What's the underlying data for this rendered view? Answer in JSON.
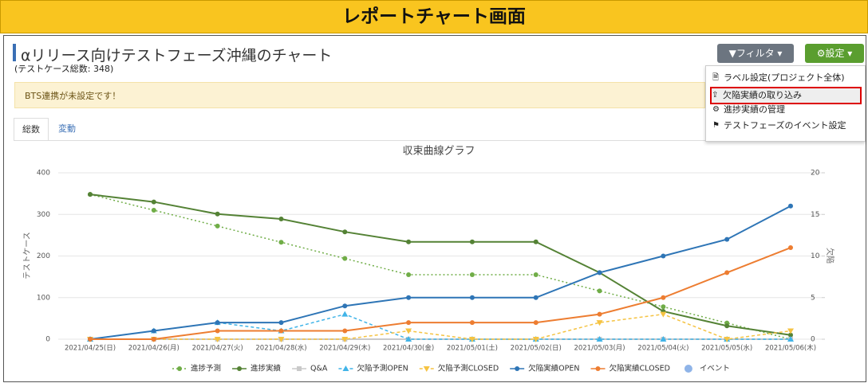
{
  "header": {
    "title": "レポートチャート画面"
  },
  "page": {
    "title": "αリリース向けテストフェーズ沖縄のチャート",
    "subtitle": "(テストケース総数: 348)"
  },
  "buttons": {
    "filter": "フィルタ",
    "settings": "設定"
  },
  "menu": {
    "items": [
      "ラベル設定(プロジェクト全体)",
      "欠陥実績の取り込み",
      "進捗実績の管理",
      "テストフェーズのイベント設定"
    ],
    "highlighted": 1
  },
  "alert": "BTS連携が未設定です！",
  "tabs": [
    "総数",
    "変動"
  ],
  "chart_data": {
    "type": "line",
    "title": "収束曲線グラフ",
    "y_label": "テストケース",
    "y2_label": "欠陥",
    "categories": [
      "2021/04/25(日)",
      "2021/04/26(月)",
      "2021/04/27(火)",
      "2021/04/28(水)",
      "2021/04/29(木)",
      "2021/04/30(金)",
      "2021/05/01(土)",
      "2021/05/02(日)",
      "2021/05/03(月)",
      "2021/05/04(火)",
      "2021/05/05(水)",
      "2021/05/06(木)"
    ],
    "ylim": [
      0,
      400
    ],
    "yticks": [
      0,
      100,
      200,
      300,
      400
    ],
    "y2lim": [
      0,
      20
    ],
    "y2ticks": [
      0,
      5,
      10,
      15,
      20
    ],
    "grid": true,
    "series": [
      {
        "name": "進捗予測",
        "color": "#70ad47",
        "style": "dotted",
        "marker": "circle",
        "values": [
          348,
          310,
          272,
          233,
          194,
          155,
          155,
          155,
          116,
          78,
          39,
          0
        ]
      },
      {
        "name": "進捗実績",
        "color": "#548235",
        "style": "solid",
        "marker": "circle",
        "values": [
          348,
          330,
          301,
          289,
          258,
          234,
          234,
          234,
          160,
          67,
          32,
          10
        ]
      },
      {
        "name": "Q&A",
        "color": "#c9c9c9",
        "style": "solid",
        "marker": "square",
        "axis": "y2",
        "values": [
          0,
          0,
          0,
          0,
          0,
          0,
          0,
          0,
          0,
          0,
          0,
          0
        ]
      },
      {
        "name": "欠陥予測OPEN",
        "color": "#41b4e8",
        "style": "dashed",
        "marker": "triangle",
        "axis": "y2",
        "values": [
          0,
          1,
          2,
          1,
          3,
          0,
          0,
          0,
          0,
          0,
          0,
          0
        ]
      },
      {
        "name": "欠陥予測CLOSED",
        "color": "#f5c342",
        "style": "dashed",
        "marker": "triangle-down",
        "axis": "y2",
        "values": [
          0,
          0,
          0,
          0,
          0,
          1,
          0,
          0,
          2,
          3,
          0,
          1
        ]
      },
      {
        "name": "欠陥実績OPEN",
        "color": "#2e75b6",
        "style": "solid",
        "marker": "circle",
        "axis": "y2",
        "values": [
          0,
          1,
          2,
          2,
          4,
          5,
          5,
          5,
          8,
          10,
          12,
          16
        ]
      },
      {
        "name": "欠陥実績CLOSED",
        "color": "#ed7d31",
        "style": "solid",
        "marker": "circle",
        "axis": "y2",
        "values": [
          0,
          0,
          1,
          1,
          1,
          2,
          2,
          2,
          3,
          5,
          8,
          11
        ]
      },
      {
        "name": "イベント",
        "color": "#8fb4e8",
        "style": "none",
        "marker": "circle",
        "axis": "y2",
        "values": [
          null,
          null,
          null,
          null,
          null,
          null,
          null,
          null,
          null,
          null,
          null,
          null
        ]
      }
    ]
  }
}
